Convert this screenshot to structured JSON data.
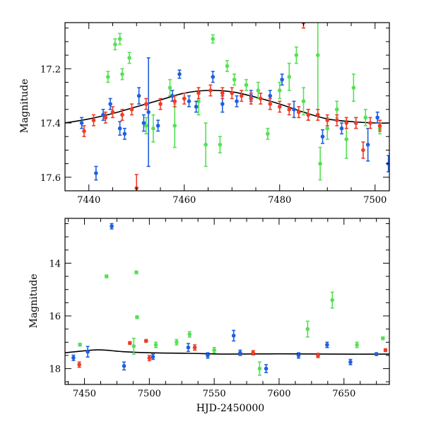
{
  "chart_data": [
    {
      "type": "scatter",
      "panel": "top",
      "xlabel": "",
      "ylabel": "Magnitude",
      "xlim": [
        7435,
        7503
      ],
      "ylim": [
        17.65,
        17.03
      ],
      "y_inverted": true,
      "grid": false,
      "x_ticks": [
        7440,
        7460,
        7480,
        7500
      ],
      "y_ticks": [
        17.2,
        17.4,
        17.6
      ],
      "colors": {
        "blue": "#1f5fe0",
        "green": "#55e055",
        "red": "#f03c28",
        "model": "#000000"
      },
      "model_curve": {
        "x": [
          7435,
          7440,
          7445,
          7450,
          7455,
          7460,
          7465,
          7470,
          7475,
          7480,
          7485,
          7490,
          7495,
          7500,
          7503
        ],
        "y": [
          17.4,
          17.385,
          17.365,
          17.34,
          17.315,
          17.29,
          17.28,
          17.285,
          17.305,
          17.33,
          17.36,
          17.385,
          17.395,
          17.4,
          17.4
        ]
      },
      "series": [
        {
          "color": "blue",
          "points": [
            {
              "x": 7438.5,
              "y": 17.4,
              "err": 0.02
            },
            {
              "x": 7441.5,
              "y": 17.585,
              "err": 0.025
            },
            {
              "x": 7443.0,
              "y": 17.37,
              "err": 0.02
            },
            {
              "x": 7444.5,
              "y": 17.33,
              "err": 0.02
            },
            {
              "x": 7446.5,
              "y": 17.42,
              "err": 0.025
            },
            {
              "x": 7447.5,
              "y": 17.44,
              "err": 0.02
            },
            {
              "x": 7450.5,
              "y": 17.3,
              "err": 0.03
            },
            {
              "x": 7451.5,
              "y": 17.4,
              "err": 0.03
            },
            {
              "x": 7452.5,
              "y": 17.36,
              "err": 0.2
            },
            {
              "x": 7454.5,
              "y": 17.41,
              "err": 0.02
            },
            {
              "x": 7457.5,
              "y": 17.3,
              "err": 0.02
            },
            {
              "x": 7459.0,
              "y": 17.22,
              "err": 0.015
            },
            {
              "x": 7461.0,
              "y": 17.32,
              "err": 0.02
            },
            {
              "x": 7462.5,
              "y": 17.34,
              "err": 0.02
            },
            {
              "x": 7466.0,
              "y": 17.23,
              "err": 0.02
            },
            {
              "x": 7468.0,
              "y": 17.33,
              "err": 0.03
            },
            {
              "x": 7471.0,
              "y": 17.32,
              "err": 0.02
            },
            {
              "x": 7474.0,
              "y": 17.3,
              "err": 0.02
            },
            {
              "x": 7478.0,
              "y": 17.3,
              "err": 0.02
            },
            {
              "x": 7480.5,
              "y": 17.24,
              "err": 0.02
            },
            {
              "x": 7483.0,
              "y": 17.35,
              "err": 0.03
            },
            {
              "x": 7486.0,
              "y": 17.37,
              "err": 0.02
            },
            {
              "x": 7489.0,
              "y": 17.45,
              "err": 0.025
            },
            {
              "x": 7493.0,
              "y": 17.42,
              "err": 0.02
            },
            {
              "x": 7496.0,
              "y": 17.4,
              "err": 0.02
            },
            {
              "x": 7498.5,
              "y": 17.48,
              "err": 0.06
            },
            {
              "x": 7500.5,
              "y": 17.38,
              "err": 0.02
            },
            {
              "x": 7502.8,
              "y": 17.55,
              "err": 0.03
            }
          ]
        },
        {
          "color": "green",
          "points": [
            {
              "x": 7444.0,
              "y": 17.23,
              "err": 0.02
            },
            {
              "x": 7445.5,
              "y": 17.11,
              "err": 0.02
            },
            {
              "x": 7446.5,
              "y": 17.09,
              "err": 0.02
            },
            {
              "x": 7447.0,
              "y": 17.22,
              "err": 0.02
            },
            {
              "x": 7448.5,
              "y": 17.16,
              "err": 0.02
            },
            {
              "x": 7452.0,
              "y": 17.41,
              "err": 0.03
            },
            {
              "x": 7453.5,
              "y": 17.42,
              "err": 0.05
            },
            {
              "x": 7457.0,
              "y": 17.27,
              "err": 0.03
            },
            {
              "x": 7458.0,
              "y": 17.41,
              "err": 0.08
            },
            {
              "x": 7463.0,
              "y": 17.32,
              "err": 0.05
            },
            {
              "x": 7464.5,
              "y": 17.48,
              "err": 0.08
            },
            {
              "x": 7466.0,
              "y": 17.09,
              "err": 0.015
            },
            {
              "x": 7467.5,
              "y": 17.48,
              "err": 0.03
            },
            {
              "x": 7469.0,
              "y": 17.19,
              "err": 0.02
            },
            {
              "x": 7470.5,
              "y": 17.24,
              "err": 0.02
            },
            {
              "x": 7473.0,
              "y": 17.26,
              "err": 0.02
            },
            {
              "x": 7475.5,
              "y": 17.28,
              "err": 0.03
            },
            {
              "x": 7477.5,
              "y": 17.44,
              "err": 0.02
            },
            {
              "x": 7480.0,
              "y": 17.28,
              "err": 0.03
            },
            {
              "x": 7482.0,
              "y": 17.23,
              "err": 0.05
            },
            {
              "x": 7483.5,
              "y": 17.15,
              "err": 0.03
            },
            {
              "x": 7485.0,
              "y": 17.32,
              "err": 0.05
            },
            {
              "x": 7488.0,
              "y": 17.15,
              "err": 0.2
            },
            {
              "x": 7488.5,
              "y": 17.55,
              "err": 0.06
            },
            {
              "x": 7490.0,
              "y": 17.42,
              "err": 0.04
            },
            {
              "x": 7492.0,
              "y": 17.35,
              "err": 0.03
            },
            {
              "x": 7494.0,
              "y": 17.46,
              "err": 0.07
            },
            {
              "x": 7495.5,
              "y": 17.27,
              "err": 0.05
            },
            {
              "x": 7498.0,
              "y": 17.38,
              "err": 0.03
            },
            {
              "x": 7501.0,
              "y": 17.42,
              "err": 0.02
            }
          ]
        },
        {
          "color": "red",
          "points": [
            {
              "x": 7439.0,
              "y": 17.43,
              "err": 0.02
            },
            {
              "x": 7441.0,
              "y": 17.39,
              "err": 0.02
            },
            {
              "x": 7443.5,
              "y": 17.38,
              "err": 0.02
            },
            {
              "x": 7445.0,
              "y": 17.36,
              "err": 0.02
            },
            {
              "x": 7447.0,
              "y": 17.37,
              "err": 0.02
            },
            {
              "x": 7449.0,
              "y": 17.35,
              "err": 0.02
            },
            {
              "x": 7450.0,
              "y": 17.64,
              "err": 0.05
            },
            {
              "x": 7452.0,
              "y": 17.33,
              "err": 0.02
            },
            {
              "x": 7455.0,
              "y": 17.33,
              "err": 0.02
            },
            {
              "x": 7458.0,
              "y": 17.32,
              "err": 0.02
            },
            {
              "x": 7460.0,
              "y": 17.31,
              "err": 0.02
            },
            {
              "x": 7463.0,
              "y": 17.29,
              "err": 0.02
            },
            {
              "x": 7465.5,
              "y": 17.28,
              "err": 0.02
            },
            {
              "x": 7468.0,
              "y": 17.29,
              "err": 0.02
            },
            {
              "x": 7470.0,
              "y": 17.29,
              "err": 0.02
            },
            {
              "x": 7472.0,
              "y": 17.3,
              "err": 0.02
            },
            {
              "x": 7474.0,
              "y": 17.31,
              "err": 0.02
            },
            {
              "x": 7476.0,
              "y": 17.31,
              "err": 0.02
            },
            {
              "x": 7478.0,
              "y": 17.33,
              "err": 0.02
            },
            {
              "x": 7480.0,
              "y": 17.34,
              "err": 0.02
            },
            {
              "x": 7482.0,
              "y": 17.35,
              "err": 0.02
            },
            {
              "x": 7484.0,
              "y": 17.36,
              "err": 0.02
            },
            {
              "x": 7485.0,
              "y": 17.03,
              "err": 0.02
            },
            {
              "x": 7486.0,
              "y": 17.37,
              "err": 0.02
            },
            {
              "x": 7488.0,
              "y": 17.37,
              "err": 0.02
            },
            {
              "x": 7490.0,
              "y": 17.39,
              "err": 0.02
            },
            {
              "x": 7492.0,
              "y": 17.39,
              "err": 0.02
            },
            {
              "x": 7494.0,
              "y": 17.4,
              "err": 0.02
            },
            {
              "x": 7496.0,
              "y": 17.4,
              "err": 0.02
            },
            {
              "x": 7497.5,
              "y": 17.5,
              "err": 0.03
            },
            {
              "x": 7499.0,
              "y": 17.4,
              "err": 0.02
            },
            {
              "x": 7501.0,
              "y": 17.41,
              "err": 0.02
            }
          ]
        }
      ]
    },
    {
      "type": "scatter",
      "panel": "bottom",
      "xlabel": "HJD-2450000",
      "ylabel": "Magnitude",
      "xlim": [
        7435,
        7685
      ],
      "ylim": [
        18.6,
        12.3
      ],
      "y_inverted": true,
      "grid": false,
      "x_ticks": [
        7450,
        7500,
        7550,
        7600,
        7650
      ],
      "y_ticks": [
        14,
        16,
        18
      ],
      "colors": {
        "blue": "#1f5fe0",
        "green": "#55e055",
        "red": "#f03c28",
        "model": "#000000"
      },
      "model_curve": {
        "x": [
          7435,
          7460,
          7480,
          7500,
          7530,
          7560,
          7600,
          7640,
          7685
        ],
        "y": [
          17.4,
          17.29,
          17.36,
          17.4,
          17.42,
          17.45,
          17.44,
          17.45,
          17.45
        ]
      },
      "series": [
        {
          "color": "blue",
          "points": [
            {
              "x": 7441.5,
              "y": 17.59,
              "err": 0.1
            },
            {
              "x": 7452.5,
              "y": 17.36,
              "err": 0.2
            },
            {
              "x": 7471.0,
              "y": 12.6,
              "err": 0.1
            },
            {
              "x": 7480.5,
              "y": 17.9,
              "err": 0.15
            },
            {
              "x": 7502.8,
              "y": 17.55,
              "err": 0.1
            },
            {
              "x": 7530.0,
              "y": 17.2,
              "err": 0.15
            },
            {
              "x": 7545.0,
              "y": 17.5,
              "err": 0.1
            },
            {
              "x": 7565.0,
              "y": 16.75,
              "err": 0.2
            },
            {
              "x": 7570.0,
              "y": 17.4,
              "err": 0.1
            },
            {
              "x": 7590.0,
              "y": 18.0,
              "err": 0.15
            },
            {
              "x": 7615.0,
              "y": 17.5,
              "err": 0.1
            },
            {
              "x": 7637.0,
              "y": 17.1,
              "err": 0.1
            },
            {
              "x": 7655.0,
              "y": 17.75,
              "err": 0.1
            },
            {
              "x": 7675.0,
              "y": 17.45,
              "err": 0.05
            }
          ]
        },
        {
          "color": "green",
          "points": [
            {
              "x": 7446.5,
              "y": 17.09,
              "err": 0.05
            },
            {
              "x": 7467.0,
              "y": 14.5,
              "err": 0.05
            },
            {
              "x": 7488.0,
              "y": 17.15,
              "err": 0.3
            },
            {
              "x": 7490.0,
              "y": 14.35,
              "err": 0.05
            },
            {
              "x": 7490.5,
              "y": 16.05,
              "err": 0.05
            },
            {
              "x": 7505.0,
              "y": 17.1,
              "err": 0.1
            },
            {
              "x": 7521.0,
              "y": 17.0,
              "err": 0.1
            },
            {
              "x": 7531.0,
              "y": 16.7,
              "err": 0.1
            },
            {
              "x": 7550.0,
              "y": 17.3,
              "err": 0.1
            },
            {
              "x": 7585.0,
              "y": 18.0,
              "err": 0.25
            },
            {
              "x": 7622.0,
              "y": 16.5,
              "err": 0.3
            },
            {
              "x": 7641.0,
              "y": 15.4,
              "err": 0.3
            },
            {
              "x": 7660.0,
              "y": 17.1,
              "err": 0.1
            },
            {
              "x": 7680.0,
              "y": 16.85,
              "err": 0.05
            }
          ]
        },
        {
          "color": "red",
          "points": [
            {
              "x": 7446.0,
              "y": 17.85,
              "err": 0.1
            },
            {
              "x": 7485.0,
              "y": 17.03,
              "err": 0.05
            },
            {
              "x": 7497.5,
              "y": 16.95,
              "err": 0.05
            },
            {
              "x": 7500.0,
              "y": 17.6,
              "err": 0.1
            },
            {
              "x": 7535.0,
              "y": 17.2,
              "err": 0.1
            },
            {
              "x": 7580.0,
              "y": 17.4,
              "err": 0.08
            },
            {
              "x": 7630.0,
              "y": 17.5,
              "err": 0.08
            },
            {
              "x": 7682.0,
              "y": 17.3,
              "err": 0.05
            }
          ]
        }
      ]
    }
  ]
}
